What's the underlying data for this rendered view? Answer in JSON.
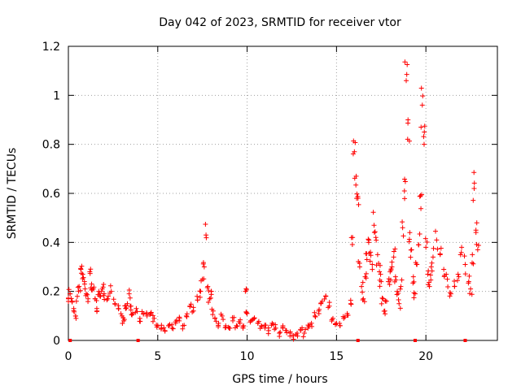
{
  "chart_data": {
    "type": "scatter",
    "title": "Day 042 of 2023, SRMTID for receiver vtor",
    "xlabel": "GPS time / hours",
    "ylabel": "SRMTID / TECUs",
    "xlim": [
      0,
      24
    ],
    "ylim": [
      0,
      1.2
    ],
    "xticks": [
      "0",
      "5",
      "10",
      "15",
      "20"
    ],
    "yticks": [
      "0",
      "0.2",
      "0.4",
      "0.6",
      "0.8",
      "1",
      "1.2"
    ],
    "grid": true,
    "marker": "plus",
    "color": "#ff0000",
    "series": [
      {
        "name": "SRMTID",
        "points": [
          [
            0.0,
            0.17
          ],
          [
            0.1,
            0.19
          ],
          [
            0.2,
            0.16
          ],
          [
            0.3,
            0.13
          ],
          [
            0.4,
            0.1
          ],
          [
            0.5,
            0.18
          ],
          [
            0.6,
            0.22
          ],
          [
            0.7,
            0.29
          ],
          [
            0.8,
            0.27
          ],
          [
            0.9,
            0.24
          ],
          [
            1.0,
            0.19
          ],
          [
            1.1,
            0.17
          ],
          [
            1.2,
            0.28
          ],
          [
            1.3,
            0.23
          ],
          [
            1.4,
            0.21
          ],
          [
            1.5,
            0.17
          ],
          [
            1.6,
            0.12
          ],
          [
            1.7,
            0.2
          ],
          [
            1.8,
            0.18
          ],
          [
            1.9,
            0.21
          ],
          [
            2.0,
            0.19
          ],
          [
            2.2,
            0.17
          ],
          [
            2.4,
            0.2
          ],
          [
            2.6,
            0.15
          ],
          [
            2.8,
            0.13
          ],
          [
            3.0,
            0.1
          ],
          [
            3.1,
            0.08
          ],
          [
            3.2,
            0.13
          ],
          [
            3.3,
            0.15
          ],
          [
            3.4,
            0.19
          ],
          [
            3.5,
            0.14
          ],
          [
            3.6,
            0.11
          ],
          [
            3.8,
            0.13
          ],
          [
            4.0,
            0.09
          ],
          [
            4.2,
            0.11
          ],
          [
            4.4,
            0.1
          ],
          [
            4.6,
            0.11
          ],
          [
            4.8,
            0.09
          ],
          [
            5.0,
            0.06
          ],
          [
            5.2,
            0.05
          ],
          [
            5.4,
            0.04
          ],
          [
            5.6,
            0.06
          ],
          [
            5.8,
            0.05
          ],
          [
            6.0,
            0.07
          ],
          [
            6.2,
            0.08
          ],
          [
            6.4,
            0.06
          ],
          [
            6.6,
            0.1
          ],
          [
            6.8,
            0.14
          ],
          [
            7.0,
            0.12
          ],
          [
            7.2,
            0.18
          ],
          [
            7.4,
            0.2
          ],
          [
            7.5,
            0.25
          ],
          [
            7.6,
            0.3
          ],
          [
            7.7,
            0.43
          ],
          [
            7.8,
            0.22
          ],
          [
            7.9,
            0.17
          ],
          [
            8.0,
            0.2
          ],
          [
            8.1,
            0.12
          ],
          [
            8.2,
            0.09
          ],
          [
            8.4,
            0.07
          ],
          [
            8.6,
            0.1
          ],
          [
            8.8,
            0.06
          ],
          [
            9.0,
            0.05
          ],
          [
            9.2,
            0.08
          ],
          [
            9.4,
            0.06
          ],
          [
            9.6,
            0.07
          ],
          [
            9.8,
            0.06
          ],
          [
            9.9,
            0.2
          ],
          [
            10.0,
            0.11
          ],
          [
            10.2,
            0.08
          ],
          [
            10.4,
            0.09
          ],
          [
            10.6,
            0.07
          ],
          [
            10.8,
            0.06
          ],
          [
            11.0,
            0.05
          ],
          [
            11.2,
            0.04
          ],
          [
            11.4,
            0.07
          ],
          [
            11.6,
            0.05
          ],
          [
            11.8,
            0.03
          ],
          [
            12.0,
            0.06
          ],
          [
            12.2,
            0.04
          ],
          [
            12.4,
            0.03
          ],
          [
            12.6,
            0.02
          ],
          [
            12.8,
            0.03
          ],
          [
            13.0,
            0.04
          ],
          [
            13.2,
            0.03
          ],
          [
            13.4,
            0.05
          ],
          [
            13.6,
            0.07
          ],
          [
            13.8,
            0.1
          ],
          [
            14.0,
            0.12
          ],
          [
            14.2,
            0.16
          ],
          [
            14.4,
            0.18
          ],
          [
            14.6,
            0.14
          ],
          [
            14.8,
            0.09
          ],
          [
            15.0,
            0.07
          ],
          [
            15.2,
            0.06
          ],
          [
            15.4,
            0.09
          ],
          [
            15.6,
            0.11
          ],
          [
            15.8,
            0.15
          ],
          [
            15.9,
            0.42
          ],
          [
            16.0,
            0.77
          ],
          [
            16.1,
            0.67
          ],
          [
            16.2,
            0.58
          ],
          [
            16.3,
            0.3
          ],
          [
            16.4,
            0.22
          ],
          [
            16.5,
            0.17
          ],
          [
            16.6,
            0.26
          ],
          [
            16.7,
            0.33
          ],
          [
            16.8,
            0.4
          ],
          [
            16.9,
            0.36
          ],
          [
            17.0,
            0.31
          ],
          [
            17.1,
            0.47
          ],
          [
            17.2,
            0.42
          ],
          [
            17.3,
            0.35
          ],
          [
            17.4,
            0.28
          ],
          [
            17.5,
            0.24
          ],
          [
            17.6,
            0.17
          ],
          [
            17.7,
            0.12
          ],
          [
            17.8,
            0.16
          ],
          [
            17.9,
            0.24
          ],
          [
            18.0,
            0.28
          ],
          [
            18.1,
            0.3
          ],
          [
            18.2,
            0.34
          ],
          [
            18.3,
            0.26
          ],
          [
            18.4,
            0.2
          ],
          [
            18.5,
            0.15
          ],
          [
            18.6,
            0.22
          ],
          [
            18.7,
            0.46
          ],
          [
            18.8,
            0.61
          ],
          [
            18.9,
            1.06
          ],
          [
            19.0,
            0.9
          ],
          [
            19.1,
            0.44
          ],
          [
            19.2,
            0.37
          ],
          [
            19.3,
            0.26
          ],
          [
            19.4,
            0.19
          ],
          [
            19.5,
            0.31
          ],
          [
            19.6,
            0.39
          ],
          [
            19.7,
            0.59
          ],
          [
            19.8,
            0.96
          ],
          [
            19.9,
            0.8
          ],
          [
            20.0,
            0.38
          ],
          [
            20.1,
            0.27
          ],
          [
            20.2,
            0.22
          ],
          [
            20.3,
            0.3
          ],
          [
            20.4,
            0.34
          ],
          [
            20.6,
            0.41
          ],
          [
            20.8,
            0.35
          ],
          [
            21.0,
            0.29
          ],
          [
            21.2,
            0.25
          ],
          [
            21.4,
            0.19
          ],
          [
            21.6,
            0.22
          ],
          [
            21.8,
            0.27
          ],
          [
            22.0,
            0.38
          ],
          [
            22.2,
            0.31
          ],
          [
            22.4,
            0.24
          ],
          [
            22.5,
            0.21
          ],
          [
            22.6,
            0.35
          ],
          [
            22.7,
            0.62
          ],
          [
            22.8,
            0.45
          ],
          [
            22.9,
            0.37
          ]
        ]
      }
    ],
    "gap_markers_x": [
      0.1,
      3.9,
      16.2,
      19.4,
      22.2
    ]
  }
}
